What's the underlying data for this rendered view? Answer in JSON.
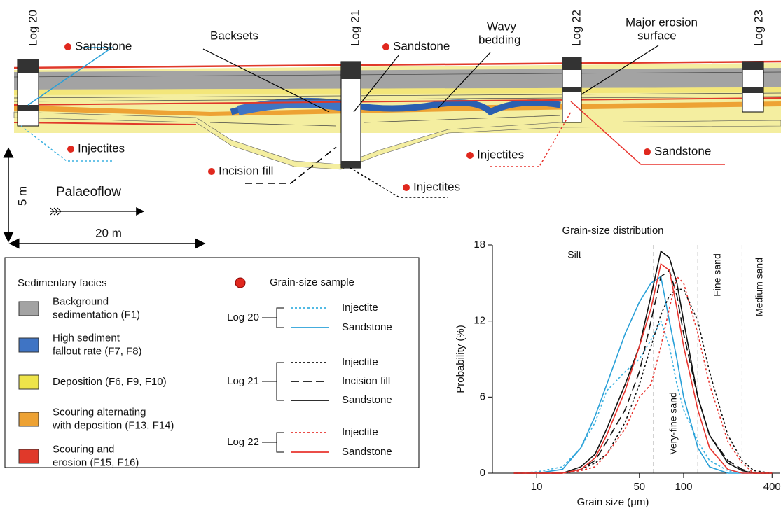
{
  "section": {
    "logs": [
      "Log 20",
      "Log 21",
      "Log 22",
      "Log 23"
    ],
    "labels": [
      "Sandstone",
      "Backsets",
      "Sandstone",
      "Wavy",
      "bedding",
      "Major erosion",
      "surface",
      "Injectites",
      "Incision fill",
      "Injectites",
      "Injectites",
      "Sandstone"
    ],
    "scale_vertical": "5 m",
    "scale_horizontal": "20 m",
    "flow": "Palaeoflow"
  },
  "legend": {
    "facies_title": "Sedimentary facies",
    "facies": [
      {
        "lines": [
          "Background",
          "sedimentation (F1)"
        ],
        "color": "#a3a3a3"
      },
      {
        "lines": [
          "High sediment",
          "fallout rate (F7, F8)"
        ],
        "color": "#3f74c4"
      },
      {
        "lines": [
          "Deposition (F6, F9, F10)"
        ],
        "color": "#eee44a"
      },
      {
        "lines": [
          "Scouring alternating",
          "with deposition (F13, F14)"
        ],
        "color": "#eda234"
      },
      {
        "lines": [
          "Scouring and",
          "erosion (F15, F16)"
        ],
        "color": "#e0392a"
      }
    ],
    "sample": "Grain-size sample"
  },
  "chart_data": {
    "type": "line",
    "title": "Grain-size distribution",
    "x_label": "Grain size (μm)",
    "y_label": "Probability (%)",
    "x_log": true,
    "xlim": [
      5,
      450
    ],
    "xticks": [
      10,
      50,
      100,
      400
    ],
    "ylim": [
      0,
      18
    ],
    "yticks": [
      0,
      6,
      12,
      18
    ],
    "boundaries": [
      62.5,
      125,
      250
    ],
    "classes": [
      "Silt",
      "Very-fine sand",
      "Fine sand",
      "Medium sand"
    ],
    "x": [
      7,
      10,
      15,
      20,
      25,
      30,
      40,
      50,
      60,
      70,
      80,
      90,
      100,
      125,
      150,
      200,
      250,
      300,
      400
    ],
    "groups": [
      {
        "name": "Log 20",
        "series": [
          {
            "name": "Injectite",
            "color": "#3ab0e0",
            "dash": "dotted",
            "values": [
              0,
              0.1,
              0.5,
              2,
              4,
              6.5,
              8,
              9,
              10.5,
              12,
              10,
              7,
              5,
              2.5,
              1,
              0.2,
              0,
              0,
              0
            ]
          },
          {
            "name": "Sandstone",
            "color": "#29a0d8",
            "dash": "solid",
            "values": [
              0,
              0,
              0.3,
              2,
              4.5,
              7,
              11,
              13.5,
              15,
              15.5,
              12,
              9,
              6,
              2,
              0.5,
              0,
              0,
              0,
              0
            ]
          }
        ]
      },
      {
        "name": "Log 21",
        "series": [
          {
            "name": "Injectite",
            "color": "#111111",
            "dash": "dotted",
            "values": [
              0,
              0,
              0,
              0.3,
              0.8,
              1.5,
              4,
              7,
              10,
              12.5,
              14,
              14.5,
              14.5,
              12,
              8,
              3,
              1,
              0.2,
              0
            ]
          },
          {
            "name": "Incision fill",
            "color": "#111111",
            "dash": "dashed",
            "values": [
              0,
              0,
              0,
              0.3,
              1,
              2.5,
              5,
              8,
              12,
              15.5,
              16,
              14,
              11,
              6,
              3,
              1,
              0.3,
              0,
              0
            ]
          },
          {
            "name": "Sandstone",
            "color": "#111111",
            "dash": "solid",
            "values": [
              0,
              0,
              0,
              0.5,
              1.5,
              3.5,
              7,
              10,
              14,
              17.5,
              17,
              15,
              12,
              6,
              3,
              0.8,
              0.2,
              0,
              0
            ]
          }
        ]
      },
      {
        "name": "Log 22",
        "series": [
          {
            "name": "Injectite",
            "color": "#e8342e",
            "dash": "dotted",
            "values": [
              0,
              0,
              0,
              0.2,
              0.5,
              1.5,
              3.5,
              6,
              7,
              10,
              13,
              15.5,
              15,
              11,
              7,
              2.5,
              0.8,
              0,
              0
            ]
          },
          {
            "name": "Sandstone",
            "color": "#e8342e",
            "dash": "solid",
            "values": [
              0,
              0,
              0,
              0.3,
              1.2,
              3,
              6.5,
              10,
              13,
              16.5,
              16,
              13,
              10,
              5,
              2,
              0.3,
              0,
              0,
              0
            ]
          }
        ]
      }
    ]
  }
}
